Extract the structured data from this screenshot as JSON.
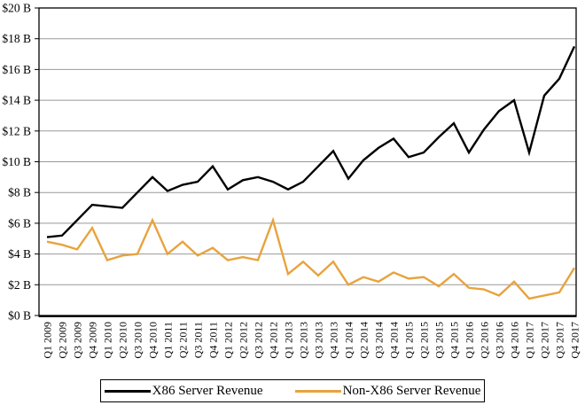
{
  "chart_data": {
    "type": "line",
    "title": "",
    "xlabel": "",
    "ylabel": "",
    "categories": [
      "Q1 2009",
      "Q2 2009",
      "Q3 2009",
      "Q4 2009",
      "Q1 2010",
      "Q2 2010",
      "Q3 2010",
      "Q4 2010",
      "Q1 2011",
      "Q2 2011",
      "Q3 2011",
      "Q4 2011",
      "Q1 2012",
      "Q2 2012",
      "Q3 2012",
      "Q4 2012",
      "Q1 2013",
      "Q2 2013",
      "Q3 2013",
      "Q4 2013",
      "Q1 2014",
      "Q2 2014",
      "Q3 2014",
      "Q4 2014",
      "Q1 2015",
      "Q2 2015",
      "Q3 2015",
      "Q4 2015",
      "Q1 2016",
      "Q2 2016",
      "Q3 2016",
      "Q4 2016",
      "Q1 2017",
      "Q2 2017",
      "Q3 2017",
      "Q4 2017"
    ],
    "series": [
      {
        "name": "X86 Server Revenue",
        "color": "#000000",
        "values": [
          5.1,
          5.2,
          6.2,
          7.2,
          7.1,
          7.0,
          8.0,
          9.0,
          8.1,
          8.5,
          8.7,
          9.7,
          8.2,
          8.8,
          9.0,
          8.7,
          8.2,
          8.7,
          9.7,
          10.7,
          8.9,
          10.1,
          10.9,
          11.5,
          10.3,
          10.6,
          11.6,
          12.5,
          10.6,
          12.1,
          13.3,
          14.0,
          10.6,
          14.3,
          15.4,
          17.5
        ]
      },
      {
        "name": "Non-X86 Server Revenue",
        "color": "#E8A33D",
        "values": [
          4.8,
          4.6,
          4.3,
          5.7,
          3.6,
          3.9,
          4.0,
          6.2,
          4.0,
          4.8,
          3.9,
          4.4,
          3.6,
          3.8,
          3.6,
          6.2,
          2.7,
          3.5,
          2.6,
          3.5,
          2.0,
          2.5,
          2.2,
          2.8,
          2.4,
          2.5,
          1.9,
          2.7,
          1.8,
          1.7,
          1.3,
          2.2,
          1.1,
          1.3,
          1.5,
          3.1
        ]
      }
    ],
    "ylim": [
      0,
      20
    ],
    "ytick_step": 2,
    "ytick_labels": [
      "$0 B",
      "$2 B",
      "$4 B",
      "$6 B",
      "$8 B",
      "$10 B",
      "$12 B",
      "$14 B",
      "$16 B",
      "$18 B",
      "$20 B"
    ],
    "grid": true,
    "gridline_color": "#999999",
    "axis_color": "#000000",
    "legend_position": "bottom"
  },
  "legend": {
    "entries": [
      {
        "label": "X86 Server Revenue",
        "color": "#000000"
      },
      {
        "label": "Non-X86 Server Revenue",
        "color": "#E8A33D"
      }
    ]
  }
}
